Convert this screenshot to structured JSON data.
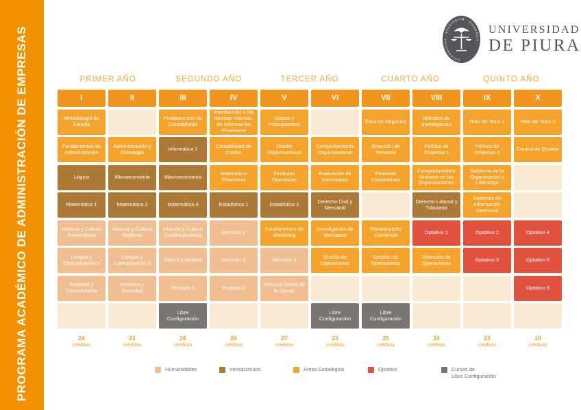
{
  "sidebar": {
    "title": "PROGRAMA ACADÉMICO DE ADMINISTRACIÓN DE EMPRESAS"
  },
  "logo": {
    "wordmark_line1": "UNIVERSIDAD",
    "wordmark_line2": "DE PIURA",
    "seal_text": "UNIVERSITAS · STUDIORUM · PIURENSIS ·"
  },
  "years": [
    "PRIMER AÑO",
    "SEGUNDO AÑO",
    "TERCER AÑO",
    "CUARTO AÑO",
    "QUINTO AÑO"
  ],
  "credits_word": "créditos",
  "semesters": [
    {
      "numeral": "I",
      "credits": "24",
      "courses": [
        {
          "label": "Metodología de Estudio",
          "type": "area"
        },
        {
          "label": "Fundamentos de Administración",
          "type": "area"
        },
        {
          "label": "Lógica",
          "type": "intro"
        },
        {
          "label": "Matemática 1",
          "type": "intro"
        },
        {
          "label": "Historia y Cultura Premoderna",
          "type": "hum"
        },
        {
          "label": "Lengua y Comunicación 1",
          "type": "hum"
        },
        {
          "label": "Realidad y Conocimiento",
          "type": "hum"
        },
        {
          "label": "",
          "type": "empty"
        }
      ]
    },
    {
      "numeral": "II",
      "credits": "23",
      "courses": [
        {
          "label": "",
          "type": "empty"
        },
        {
          "label": "Administración y Estrategia",
          "type": "area"
        },
        {
          "label": "Microeconomía",
          "type": "intro"
        },
        {
          "label": "Matemática 2",
          "type": "intro"
        },
        {
          "label": "Historia y Cultura Moderna",
          "type": "hum"
        },
        {
          "label": "Lengua y Comunicación 2",
          "type": "hum"
        },
        {
          "label": "Persona y Sociedad",
          "type": "hum"
        },
        {
          "label": "",
          "type": "empty"
        }
      ]
    },
    {
      "numeral": "III",
      "credits": "26",
      "courses": [
        {
          "label": "Fundamentos de Contabilidad",
          "type": "area"
        },
        {
          "label": "Informática 1",
          "type": "intro"
        },
        {
          "label": "Macroeconomía",
          "type": "intro"
        },
        {
          "label": "Matemática 3",
          "type": "intro"
        },
        {
          "label": "Historia y Cultura Contemporánea",
          "type": "hum"
        },
        {
          "label": "Ética Ciudadana",
          "type": "hum"
        },
        {
          "label": "Teología 1",
          "type": "hum"
        },
        {
          "label": "Libre Configuración",
          "type": "libre"
        }
      ]
    },
    {
      "numeral": "IV",
      "credits": "26",
      "courses": [
        {
          "label": "Introducción a las Normas Internac. de Información Financiera",
          "type": "area"
        },
        {
          "label": "Contabilidad de Costos",
          "type": "area"
        },
        {
          "label": "Matemática Financiera",
          "type": "area"
        },
        {
          "label": "Estadística 1",
          "type": "intro"
        },
        {
          "label": "Mención 1",
          "type": "hum"
        },
        {
          "label": "Mención 2",
          "type": "hum"
        },
        {
          "label": "Teología 2",
          "type": "hum"
        },
        {
          "label": "",
          "type": "empty"
        }
      ]
    },
    {
      "numeral": "V",
      "credits": "27",
      "courses": [
        {
          "label": "Costos y Presupuestos",
          "type": "area"
        },
        {
          "label": "Diseño Organizacional",
          "type": "area"
        },
        {
          "label": "Finanzas Operativas",
          "type": "area"
        },
        {
          "label": "Estadística 2",
          "type": "intro"
        },
        {
          "label": "Fundamentos de Marketing",
          "type": "area"
        },
        {
          "label": "Mención 3",
          "type": "hum"
        },
        {
          "label": "Doctrina Social de la Iglesia",
          "type": "hum"
        },
        {
          "label": "",
          "type": "empty"
        }
      ]
    },
    {
      "numeral": "VI",
      "credits": "23",
      "courses": [
        {
          "label": "",
          "type": "empty"
        },
        {
          "label": "Comportamiento Organizacional",
          "type": "area"
        },
        {
          "label": "Evaluación de Inversiones",
          "type": "area"
        },
        {
          "label": "Derecho Civil y Mercantil",
          "type": "intro"
        },
        {
          "label": "Investigación de Mercados",
          "type": "area"
        },
        {
          "label": "Diseño de Operaciones",
          "type": "area"
        },
        {
          "label": "",
          "type": "empty"
        },
        {
          "label": "Libre Configuración",
          "type": "libre"
        }
      ]
    },
    {
      "numeral": "VII",
      "credits": "25",
      "courses": [
        {
          "label": "Ética de Negocios",
          "type": "area"
        },
        {
          "label": "Dirección de Personal",
          "type": "area"
        },
        {
          "label": "Finanzas Corporativas",
          "type": "area"
        },
        {
          "label": "",
          "type": "empty"
        },
        {
          "label": "Planeamiento Comercial",
          "type": "area"
        },
        {
          "label": "Gestión de Operaciones",
          "type": "area"
        },
        {
          "label": "",
          "type": "empty"
        },
        {
          "label": "Libre Configuración",
          "type": "libre"
        }
      ]
    },
    {
      "numeral": "VIII",
      "credits": "24",
      "courses": [
        {
          "label": "Métodos de Investigación",
          "type": "area"
        },
        {
          "label": "Política de Empresa 1",
          "type": "area"
        },
        {
          "label": "Comportamiento Humano en las Organizaciones",
          "type": "area"
        },
        {
          "label": "Derecho Laboral y Tributario",
          "type": "intro"
        },
        {
          "label": "Optativo 1",
          "type": "opt"
        },
        {
          "label": "Dirección de Operaciones",
          "type": "area"
        },
        {
          "label": "",
          "type": "empty"
        },
        {
          "label": "",
          "type": "empty"
        }
      ]
    },
    {
      "numeral": "IX",
      "credits": "23",
      "courses": [
        {
          "label": "Plan de Tesis 1",
          "type": "area"
        },
        {
          "label": "Política de Empresa 2",
          "type": "area"
        },
        {
          "label": "Gobierno de la Organización y Liderazgo",
          "type": "area"
        },
        {
          "label": "Sistemas de Información Gerencial",
          "type": "area"
        },
        {
          "label": "Optativo 2",
          "type": "opt"
        },
        {
          "label": "Optativo 3",
          "type": "opt"
        },
        {
          "label": "",
          "type": "empty"
        },
        {
          "label": "",
          "type": "empty"
        }
      ]
    },
    {
      "numeral": "X",
      "credits": "19",
      "courses": [
        {
          "label": "Plan de Tesis 2",
          "type": "area"
        },
        {
          "label": "Control de Gestión",
          "type": "area"
        },
        {
          "label": "",
          "type": "empty"
        },
        {
          "label": "",
          "type": "empty"
        },
        {
          "label": "Optativo 4",
          "type": "opt"
        },
        {
          "label": "Optativo 5",
          "type": "opt"
        },
        {
          "label": "Optativo 6",
          "type": "opt"
        },
        {
          "label": "",
          "type": "empty"
        }
      ]
    }
  ],
  "legend": [
    {
      "label": "Humanidades",
      "type": "hum",
      "color": "#F1BE92"
    },
    {
      "label": "Introductorios",
      "type": "intro",
      "color": "#AC7936"
    },
    {
      "label": "Áreas Estratégica",
      "type": "area",
      "color": "#F4A42C"
    },
    {
      "label": "Optativo",
      "type": "opt",
      "color": "#E1523E"
    },
    {
      "label": "Cursos de\nLibre Configuración",
      "type": "libre",
      "color": "#7A7570"
    }
  ],
  "colors": {
    "area": "#F4A42C",
    "intro": "#AC7936",
    "hum": "#F1BE92",
    "opt": "#E1523E",
    "libre": "#7A7570",
    "empty_cell": "#FAEAD3",
    "header": "#F0961E",
    "sidebar": "#F39200",
    "year_label": "#F5A838",
    "credits_text": "#F49C20",
    "legend_text": "#75716E",
    "logo_gray": "#54565B"
  }
}
